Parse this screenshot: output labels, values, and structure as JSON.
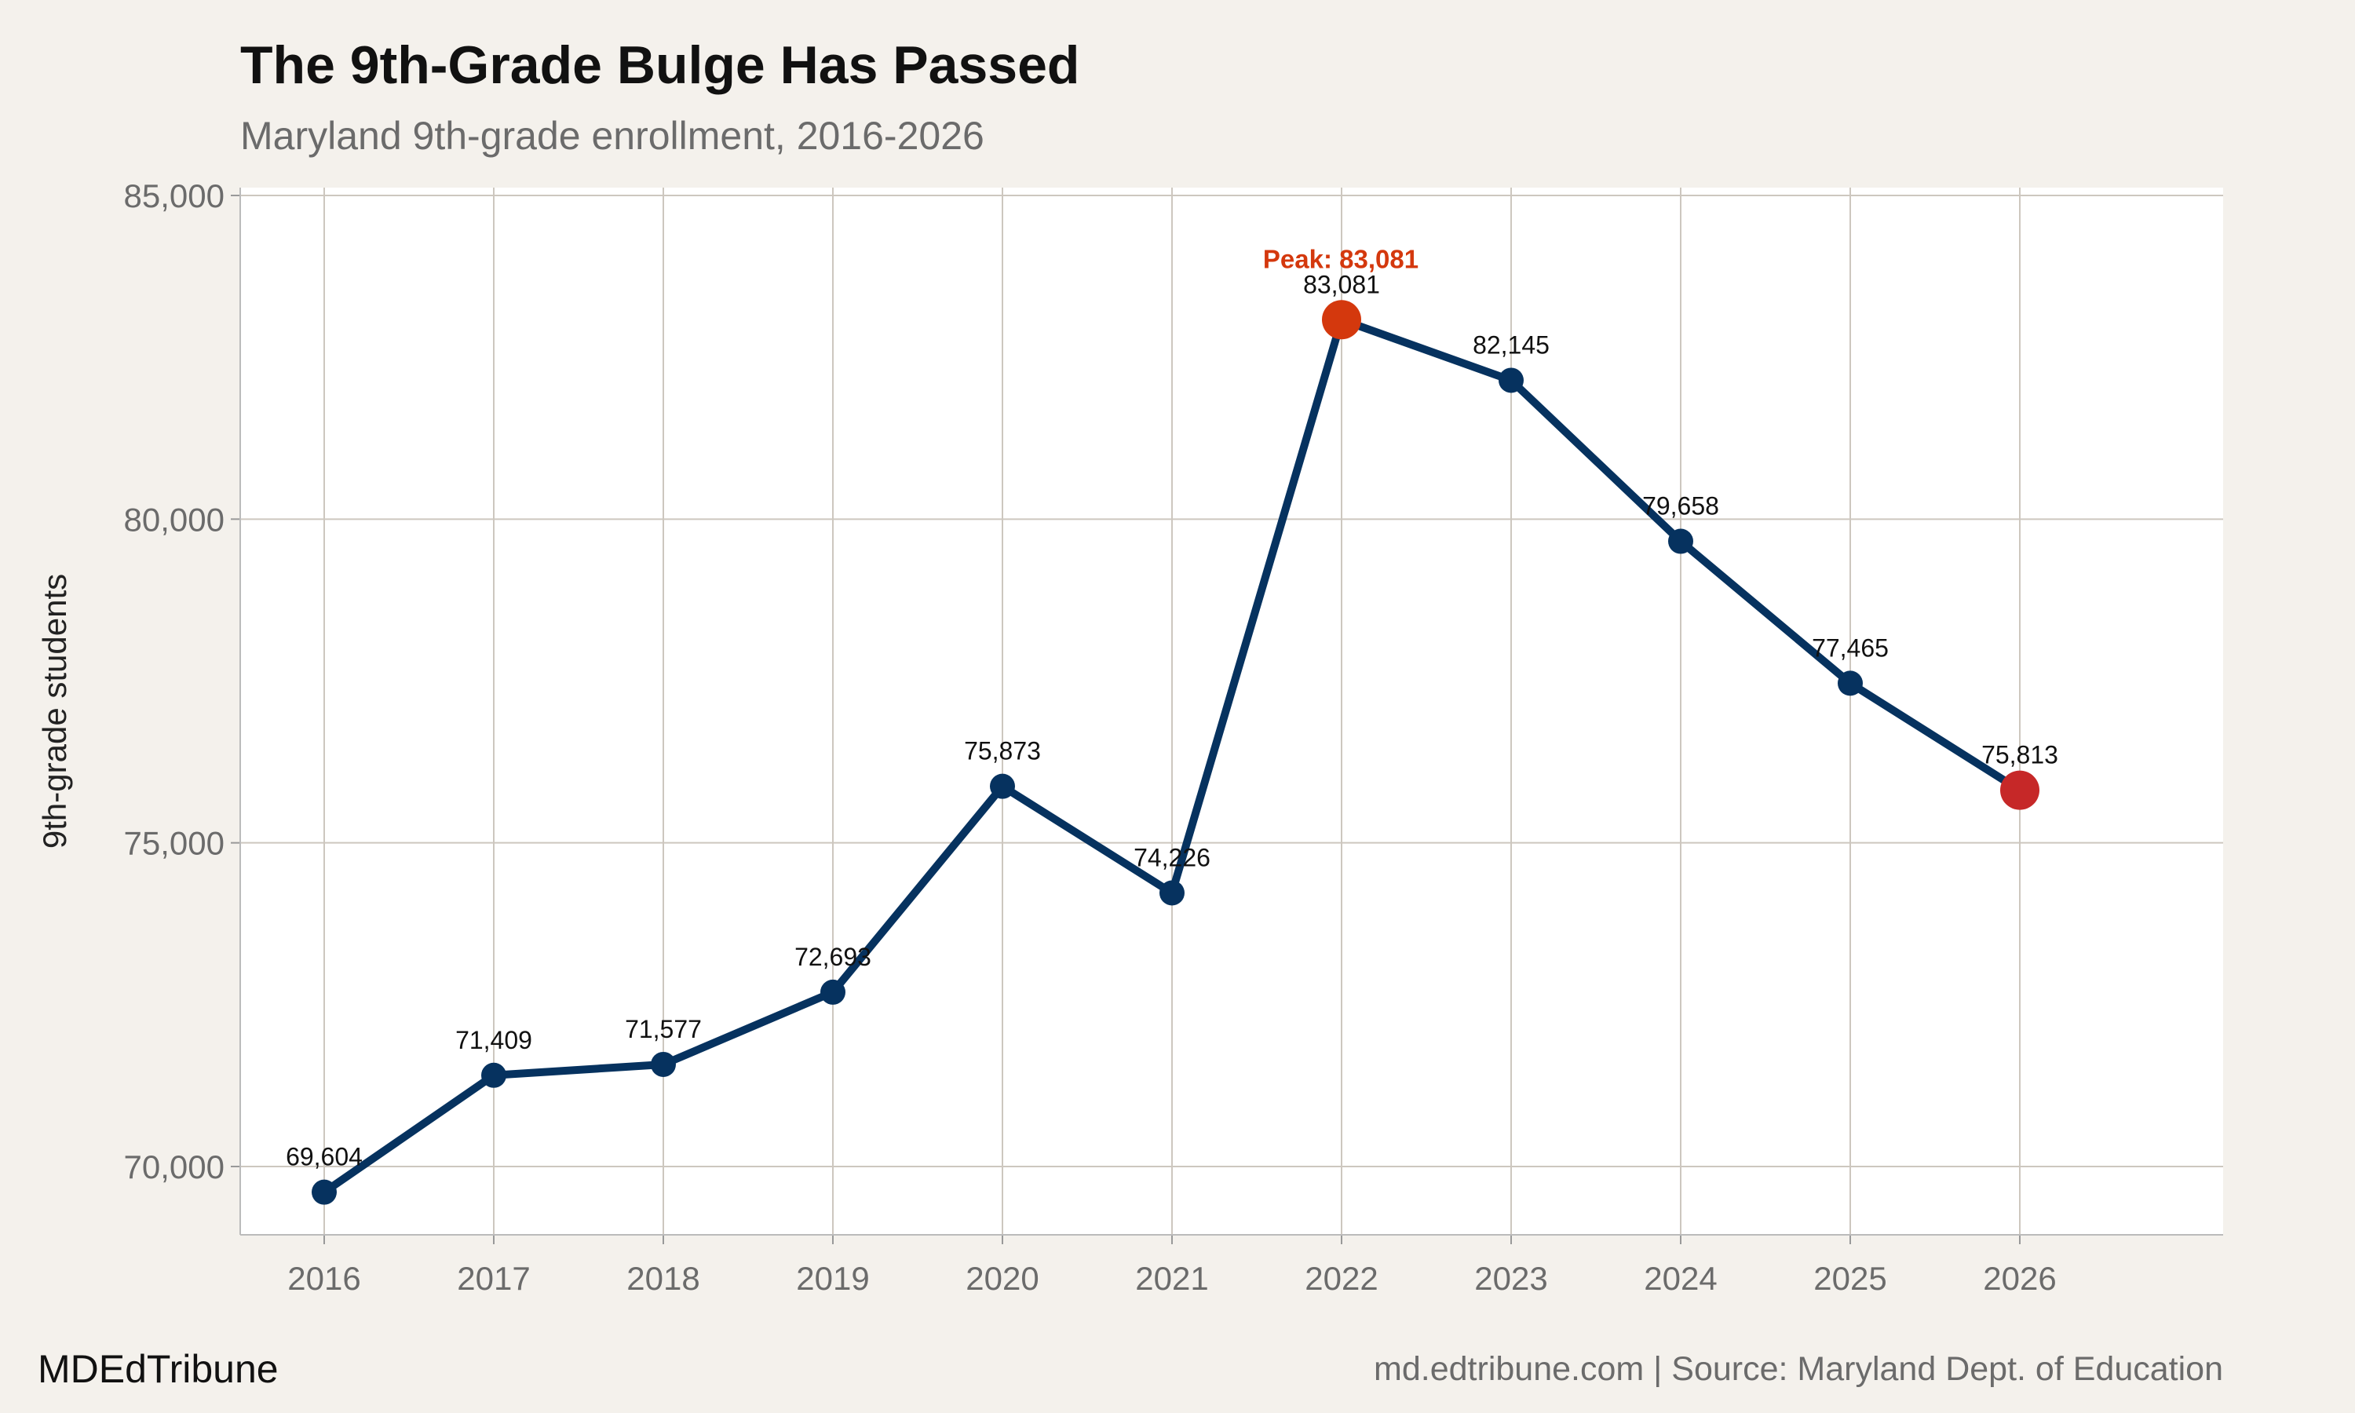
{
  "header": {
    "title": "The 9th-Grade Bulge Has Passed",
    "subtitle": "Maryland 9th-grade enrollment, 2016-2026"
  },
  "footer": {
    "brand": "MDEdTribune",
    "source": "md.edtribune.com | Source: Maryland Dept. of Education"
  },
  "chart_data": {
    "type": "line",
    "title": "The 9th-Grade Bulge Has Passed",
    "subtitle": "Maryland 9th-grade enrollment, 2016-2026",
    "xlabel": "",
    "ylabel": "9th-grade students",
    "x": [
      2016,
      2017,
      2018,
      2019,
      2020,
      2021,
      2022,
      2023,
      2024,
      2025,
      2026
    ],
    "series": [
      {
        "values": [
          69604,
          71409,
          71577,
          72693,
          75873,
          74226,
          83081,
          82145,
          79658,
          77465,
          75813
        ],
        "data_labels": [
          "69,604",
          "71,409",
          "71,577",
          "72,693",
          "75,873",
          "74,226",
          "83,081",
          "82,145",
          "79,658",
          "77,465",
          "75,813"
        ]
      }
    ],
    "ylim": [
      69000,
      85000
    ],
    "xlim": [
      2015.5,
      2027.2
    ],
    "yticks": [
      70000,
      75000,
      80000,
      85000
    ],
    "ytick_labels": [
      "70,000",
      "75,000",
      "80,000",
      "85,000"
    ],
    "xtick_labels": [
      "2016",
      "2017",
      "2018",
      "2019",
      "2020",
      "2021",
      "2022",
      "2023",
      "2024",
      "2025",
      "2026"
    ],
    "grid": true,
    "annotations": [
      {
        "x": 2022,
        "y": 83081,
        "text": "Peak: 83,081"
      }
    ],
    "highlight_points": [
      {
        "x": 2022,
        "color": "#d4380d"
      },
      {
        "x": 2026,
        "color": "#c62828"
      }
    ],
    "colors": {
      "line": "#06325f",
      "peak": "#d4380d",
      "last": "#c62828",
      "grid": "#cdc7bf",
      "background": "#f4f1ec",
      "panel": "#ffffff"
    }
  }
}
